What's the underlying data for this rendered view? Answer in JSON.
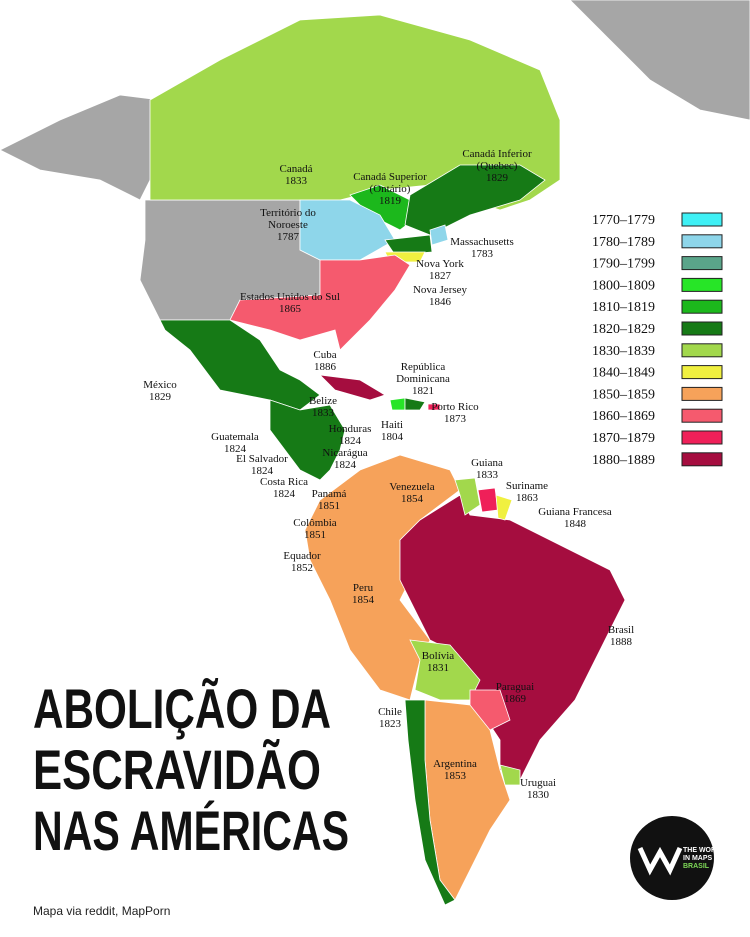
{
  "title": [
    "ABOLIÇÃO DA",
    "ESCRAVIDÃO",
    "NAS AMÉRICAS"
  ],
  "source": "Mapa via reddit, MapPorn",
  "logo": [
    "THE WORLD",
    "IN MAPS",
    "BRASIL"
  ],
  "legend": [
    {
      "label": "1770–1779",
      "color": "#3ff0f5"
    },
    {
      "label": "1780–1789",
      "color": "#8ed6ea"
    },
    {
      "label": "1790–1799",
      "color": "#5aa58a"
    },
    {
      "label": "1800–1809",
      "color": "#27e527"
    },
    {
      "label": "1810–1819",
      "color": "#1cb81c"
    },
    {
      "label": "1820–1829",
      "color": "#167a16"
    },
    {
      "label": "1830–1839",
      "color": "#a2d84c"
    },
    {
      "label": "1840–1849",
      "color": "#f0f040"
    },
    {
      "label": "1850–1859",
      "color": "#f6a25a"
    },
    {
      "label": "1860–1869",
      "color": "#f55a6e"
    },
    {
      "label": "1870–1879",
      "color": "#ef2059"
    },
    {
      "label": "1880–1889",
      "color": "#a50d3f"
    }
  ],
  "regions": [
    {
      "name": [
        "Canadá"
      ],
      "year": 1833
    },
    {
      "name": [
        "Canadá Superior",
        "(Ontário)"
      ],
      "year": 1819
    },
    {
      "name": [
        "Canadá Inferior",
        "(Quebec)"
      ],
      "year": 1829
    },
    {
      "name": [
        "Território do",
        "Noroeste"
      ],
      "year": 1787
    },
    {
      "name": [
        "Massachusetts"
      ],
      "year": 1783
    },
    {
      "name": [
        "Nova York"
      ],
      "year": 1827
    },
    {
      "name": [
        "Nova Jersey"
      ],
      "year": 1846
    },
    {
      "name": [
        "Estados Unidos do Sul"
      ],
      "year": 1865
    },
    {
      "name": [
        "Cuba"
      ],
      "year": 1886
    },
    {
      "name": [
        "República",
        "Dominicana"
      ],
      "year": 1821
    },
    {
      "name": [
        "México"
      ],
      "year": 1829
    },
    {
      "name": [
        "Belize"
      ],
      "year": 1833
    },
    {
      "name": [
        "Porto Rico"
      ],
      "year": 1873
    },
    {
      "name": [
        "Honduras"
      ],
      "year": 1824
    },
    {
      "name": [
        "Haiti"
      ],
      "year": 1804
    },
    {
      "name": [
        "Guatemala"
      ],
      "year": 1824
    },
    {
      "name": [
        "Nicarágua"
      ],
      "year": 1824
    },
    {
      "name": [
        "El Salvador"
      ],
      "year": 1824
    },
    {
      "name": [
        "Guiana"
      ],
      "year": 1833
    },
    {
      "name": [
        "Suriname"
      ],
      "year": 1863
    },
    {
      "name": [
        "Costa Rica"
      ],
      "year": 1824
    },
    {
      "name": [
        "Panamá"
      ],
      "year": 1851
    },
    {
      "name": [
        "Venezuela"
      ],
      "year": 1854
    },
    {
      "name": [
        "Guiana Francesa"
      ],
      "year": 1848
    },
    {
      "name": [
        "Colômbia"
      ],
      "year": 1851
    },
    {
      "name": [
        "Equador"
      ],
      "year": 1852
    },
    {
      "name": [
        "Peru"
      ],
      "year": 1854
    },
    {
      "name": [
        "Brasil"
      ],
      "year": 1888
    },
    {
      "name": [
        "Bolívia"
      ],
      "year": 1831
    },
    {
      "name": [
        "Paraguai"
      ],
      "year": 1869
    },
    {
      "name": [
        "Chile"
      ],
      "year": 1823
    },
    {
      "name": [
        "Argentina"
      ],
      "year": 1853
    },
    {
      "name": [
        "Uruguai"
      ],
      "year": 1830
    }
  ]
}
